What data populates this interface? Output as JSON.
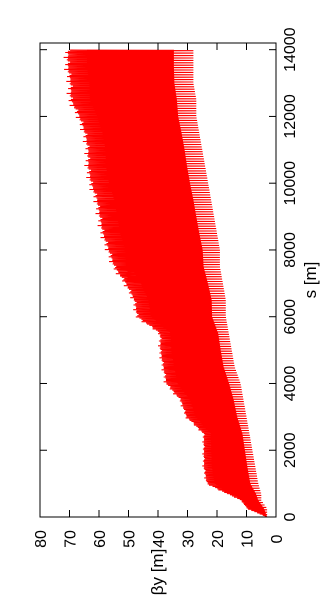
{
  "chart_data": {
    "type": "area",
    "title": "",
    "xlabel": "s [m]",
    "ylabel": "βy [m]",
    "xlim": [
      0,
      14200
    ],
    "ylim": [
      0,
      80
    ],
    "xticks": [
      0,
      2000,
      4000,
      6000,
      8000,
      10000,
      12000,
      14000
    ],
    "yticks": [
      0,
      10,
      20,
      30,
      40,
      50,
      60,
      70,
      80
    ],
    "xtick_labels": [
      "0",
      "2000",
      "4000",
      "6000",
      "8000",
      "10000",
      "12000",
      "14000"
    ],
    "ytick_labels": [
      "0",
      "10",
      "20",
      "30",
      "40",
      "50",
      "60",
      "70",
      "80"
    ],
    "grid": false,
    "legend": "none",
    "orientation": "rotated 90° counter-clockwise",
    "series": [
      {
        "color": "#ff0000",
        "description": "rapidly oscillating beta function; filled band between lower and upper envelopes",
        "s": [
          0,
          250,
          500,
          700,
          1000,
          1500,
          2000,
          2500,
          3000,
          3500,
          4000,
          4500,
          5000,
          5500,
          6000,
          6500,
          7000,
          7500,
          8000,
          8500,
          9000,
          9500,
          10000,
          10500,
          11000,
          11500,
          12000,
          12500,
          13000,
          13500,
          14000
        ],
        "upper": [
          3,
          10,
          12,
          17,
          24,
          25,
          25,
          25,
          31,
          33,
          38,
          39,
          40,
          40,
          48,
          49,
          52,
          56,
          58,
          60,
          61,
          62,
          64,
          65,
          65,
          66,
          68,
          71,
          71,
          72,
          72
        ],
        "lower": [
          3,
          3,
          5,
          5,
          6,
          7,
          8,
          9,
          10,
          11,
          12,
          14,
          15,
          16,
          17,
          17,
          18,
          19,
          19,
          20,
          21,
          22,
          23,
          24,
          25,
          26,
          27,
          27,
          28,
          28,
          28
        ]
      }
    ]
  }
}
